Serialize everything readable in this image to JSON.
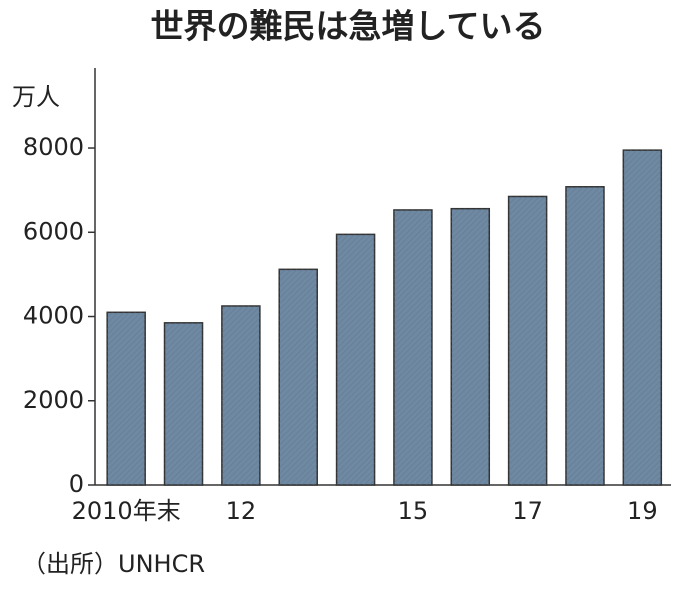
{
  "chart_data": {
    "type": "bar",
    "title": "世界の難民は急増している",
    "y_label": "万人",
    "categories": [
      "2010年末",
      null,
      "12",
      null,
      null,
      "15",
      null,
      "17",
      null,
      "19"
    ],
    "values": [
      4100,
      3850,
      4250,
      5120,
      5950,
      6530,
      6560,
      6850,
      7080,
      7950
    ],
    "color": "#6f89a3",
    "ylim": [
      0,
      9900
    ],
    "yticks": [
      0,
      2000,
      4000,
      6000,
      8000
    ],
    "grid": false,
    "source": "（出所）UNHCR"
  }
}
